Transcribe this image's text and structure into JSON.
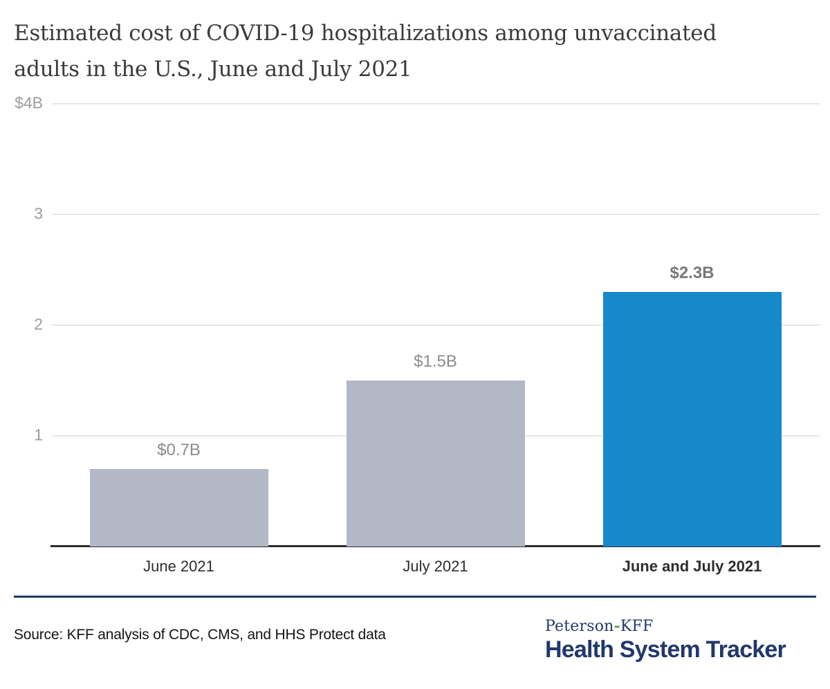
{
  "header": {
    "title_line1": "Estimated cost of COVID-19 hospitalizations among unvaccinated",
    "title_line2": "adults in the U.S., June and July 2021"
  },
  "chart_data": {
    "type": "bar",
    "title": "Estimated cost of COVID-19 hospitalizations among unvaccinated adults in the U.S., June and July 2021",
    "categories": [
      "June 2021",
      "July 2021",
      "June and July 2021"
    ],
    "values": [
      0.7,
      1.5,
      2.3
    ],
    "value_labels": [
      "$0.7B",
      "$1.5B",
      "$2.3B"
    ],
    "bar_colors": [
      "#b3b8c7",
      "#b3b8c7",
      "#1789cb"
    ],
    "emphasized": [
      false,
      false,
      true
    ],
    "xlabel": "",
    "ylabel": "",
    "ylim": [
      0,
      4
    ],
    "yticks": {
      "values": [
        4,
        3,
        2,
        1
      ],
      "labels": [
        "$4B",
        "3",
        "2",
        "1"
      ]
    },
    "grid": "horizontal",
    "legend": "none",
    "colors": {
      "bar_default": "#b3b8c7",
      "bar_accent": "#1789cb",
      "gridline": "#e7e7e7",
      "axis_line": "#2b2b2b",
      "tick_label": "#9c9c9c"
    }
  },
  "footer": {
    "source": "Source: KFF analysis of CDC, CMS, and HHS Protect data",
    "logo": {
      "name_left": "Peterson",
      "hyphen": "-",
      "name_right": "KFF",
      "title": "Health System Tracker",
      "navy": "#21386b",
      "hyphen_color": "#64a060"
    }
  }
}
